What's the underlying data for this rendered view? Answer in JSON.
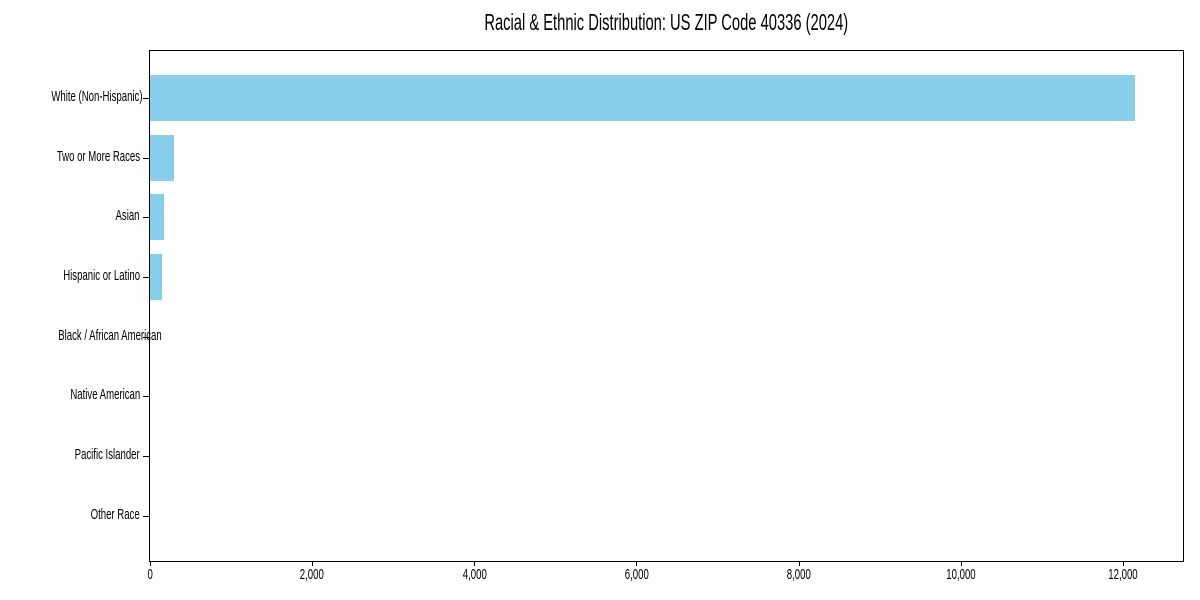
{
  "chart_data": {
    "type": "bar",
    "orientation": "horizontal",
    "title": "Racial & Ethnic Distribution: US ZIP Code 40336 (2024)",
    "categories": [
      "White (Non-Hispanic)",
      "Two or More Races",
      "Asian",
      "Hispanic or Latino",
      "Black / African American",
      "Native American",
      "Pacific Islander",
      "Other Race"
    ],
    "values": [
      12150,
      290,
      170,
      150,
      0,
      0,
      0,
      0
    ],
    "xlabel": "",
    "ylabel": "",
    "xlim": [
      0,
      12740
    ],
    "x_ticks": [
      0,
      2000,
      4000,
      6000,
      8000,
      10000,
      12000
    ],
    "x_tick_labels": [
      "0",
      "2,000",
      "4,000",
      "6,000",
      "8,000",
      "10,000",
      "12,000"
    ],
    "bar_color": "#87CEEB",
    "axis_color": "#000000",
    "background_color": "#ffffff",
    "grid": false,
    "legend": "none",
    "data_labels": "none"
  }
}
